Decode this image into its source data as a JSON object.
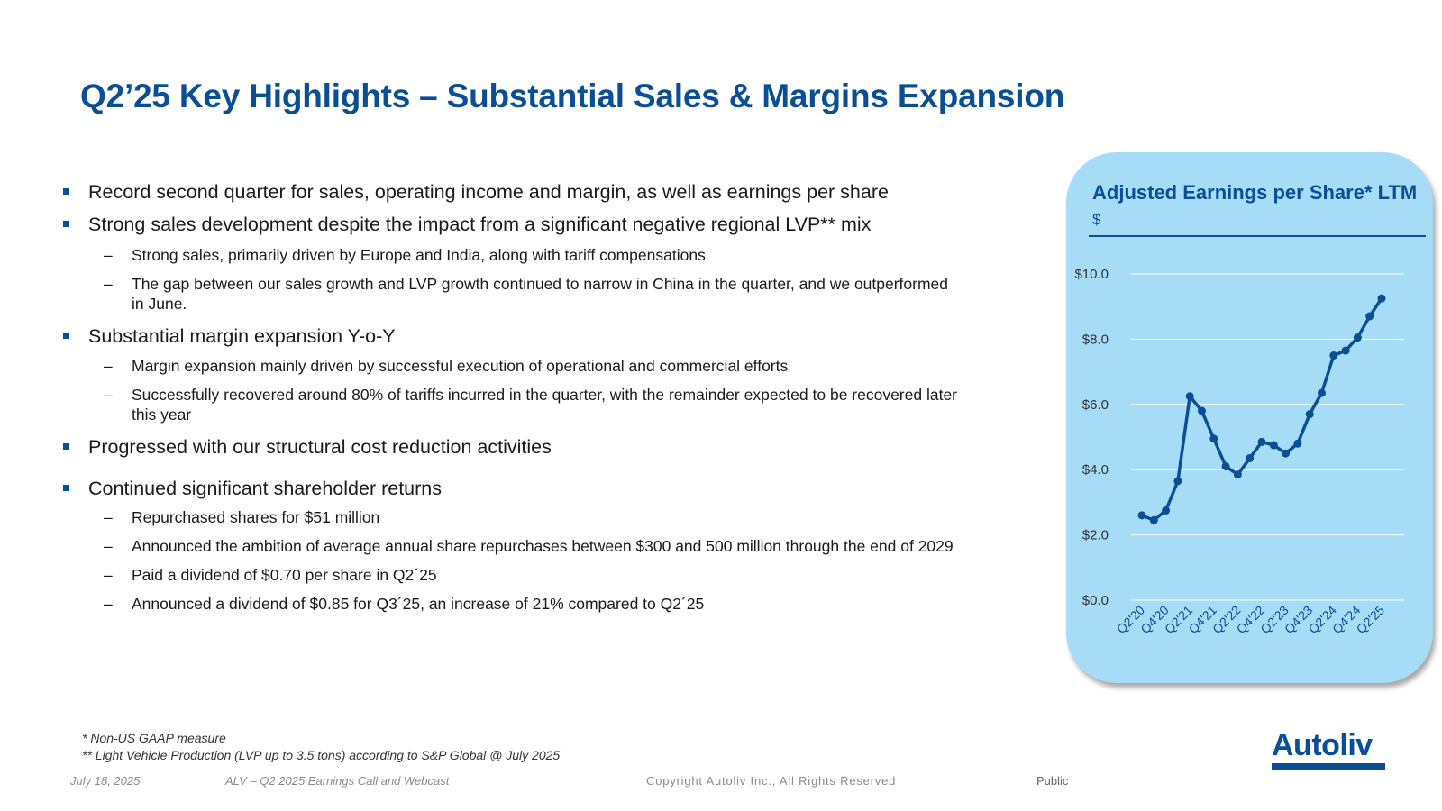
{
  "title": "Q2’25 Key Highlights – Substantial Sales & Margins Expansion",
  "bullets": [
    {
      "text": "Record second quarter for sales, operating income and margin, as well as earnings per share",
      "sub": []
    },
    {
      "text": "Strong sales development despite the impact from a significant negative regional LVP** mix",
      "sub": [
        "Strong sales, primarily driven by Europe and India, along with tariff compensations",
        "The gap between our sales growth and LVP growth continued to narrow in China in the quarter, and we outperformed in June."
      ]
    },
    {
      "text": "Substantial margin expansion Y-o-Y",
      "sub": [
        "Margin expansion mainly driven by successful execution of operational and commercial efforts",
        "Successfully recovered around 80% of tariffs incurred in the quarter, with the remainder expected to be recovered later this year"
      ]
    },
    {
      "text": "Progressed with our structural cost reduction activities",
      "sub": []
    },
    {
      "text": "Continued significant shareholder returns",
      "sub": [
        "Repurchased shares for $51 million",
        "Announced the ambition of average annual share repurchases between $300 and 500 million through the end of 2029",
        "Paid a dividend of $0.70 per share in Q2´25",
        "Announced a dividend of $0.85 for Q3´25, an increase of 21% compared to Q2´25"
      ]
    }
  ],
  "chart_data": {
    "type": "line",
    "title": "Adjusted Earnings per Share* LTM",
    "ylabel": "$",
    "xlabel": "",
    "ylim": [
      0,
      10
    ],
    "y_ticks": [
      "$0.0",
      "$2.0",
      "$4.0",
      "$6.0",
      "$8.0",
      "$10.0"
    ],
    "y_tick_values": [
      0,
      2,
      4,
      6,
      8,
      10
    ],
    "grid": true,
    "categories": [
      "Q2'20",
      "Q3'20",
      "Q4'20",
      "Q1'21",
      "Q2'21",
      "Q3'21",
      "Q4'21",
      "Q1'22",
      "Q2'22",
      "Q3'22",
      "Q4'22",
      "Q1'23",
      "Q2'23",
      "Q3'23",
      "Q4'23",
      "Q1'24",
      "Q2'24",
      "Q3'24",
      "Q4'24",
      "Q1'25",
      "Q2'25"
    ],
    "tick_labels": [
      "Q2'20",
      "Q4'20",
      "Q2'21",
      "Q4'21",
      "Q2'22",
      "Q4'22",
      "Q2'23",
      "Q4'23",
      "Q2'24",
      "Q4'24",
      "Q2'25"
    ],
    "series": [
      {
        "name": "Adjusted EPS LTM",
        "values": [
          2.6,
          2.45,
          2.75,
          3.65,
          6.25,
          5.8,
          4.95,
          4.1,
          3.85,
          4.35,
          4.85,
          4.75,
          4.5,
          4.8,
          5.7,
          6.35,
          7.5,
          7.65,
          8.05,
          8.7,
          9.25
        ]
      }
    ]
  },
  "colors": {
    "accent": "#0a4f96",
    "panel": "#a6dcf5",
    "grid": "#ffffff"
  },
  "notes": [
    "* Non-US GAAP measure",
    "** Light Vehicle Production (LVP up to 3.5 tons)  according to S&P Global @ July 2025"
  ],
  "footer": {
    "date": "July 18, 2025",
    "event": "ALV – Q2 2025 Earnings Call and Webcast",
    "copyright": "Copyright Autoliv Inc., All Rights Reserved",
    "classification": "Public"
  },
  "logo": {
    "text": "Autoliv"
  }
}
